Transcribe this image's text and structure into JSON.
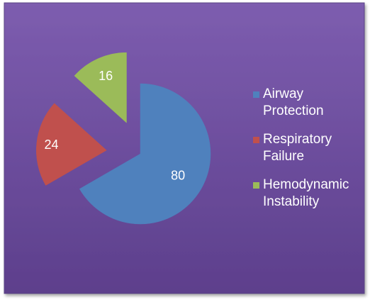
{
  "chart_data": {
    "type": "pie",
    "title": "",
    "exploded": true,
    "start_angle_deg": 0,
    "direction": "clockwise",
    "legend_position": "right",
    "slices": [
      {
        "name": "Airway Protection",
        "lines": [
          "Airway",
          "Protection"
        ],
        "value": 80,
        "label": "80",
        "color": "#4F81BD"
      },
      {
        "name": "Respiratory Failure",
        "lines": [
          "Respiratory",
          "Failure"
        ],
        "value": 24,
        "label": "24",
        "color": "#C0504D"
      },
      {
        "name": "Hemodynamic Instability",
        "lines": [
          "Hemodynamic",
          "Instability"
        ],
        "value": 16,
        "label": "16",
        "color": "#9BBB59"
      }
    ]
  },
  "style": {
    "background_top": "#7D5DAF",
    "background_bottom": "#5D3F8C",
    "border_color": "#5A4585",
    "label_color": "#FFFFFF"
  }
}
